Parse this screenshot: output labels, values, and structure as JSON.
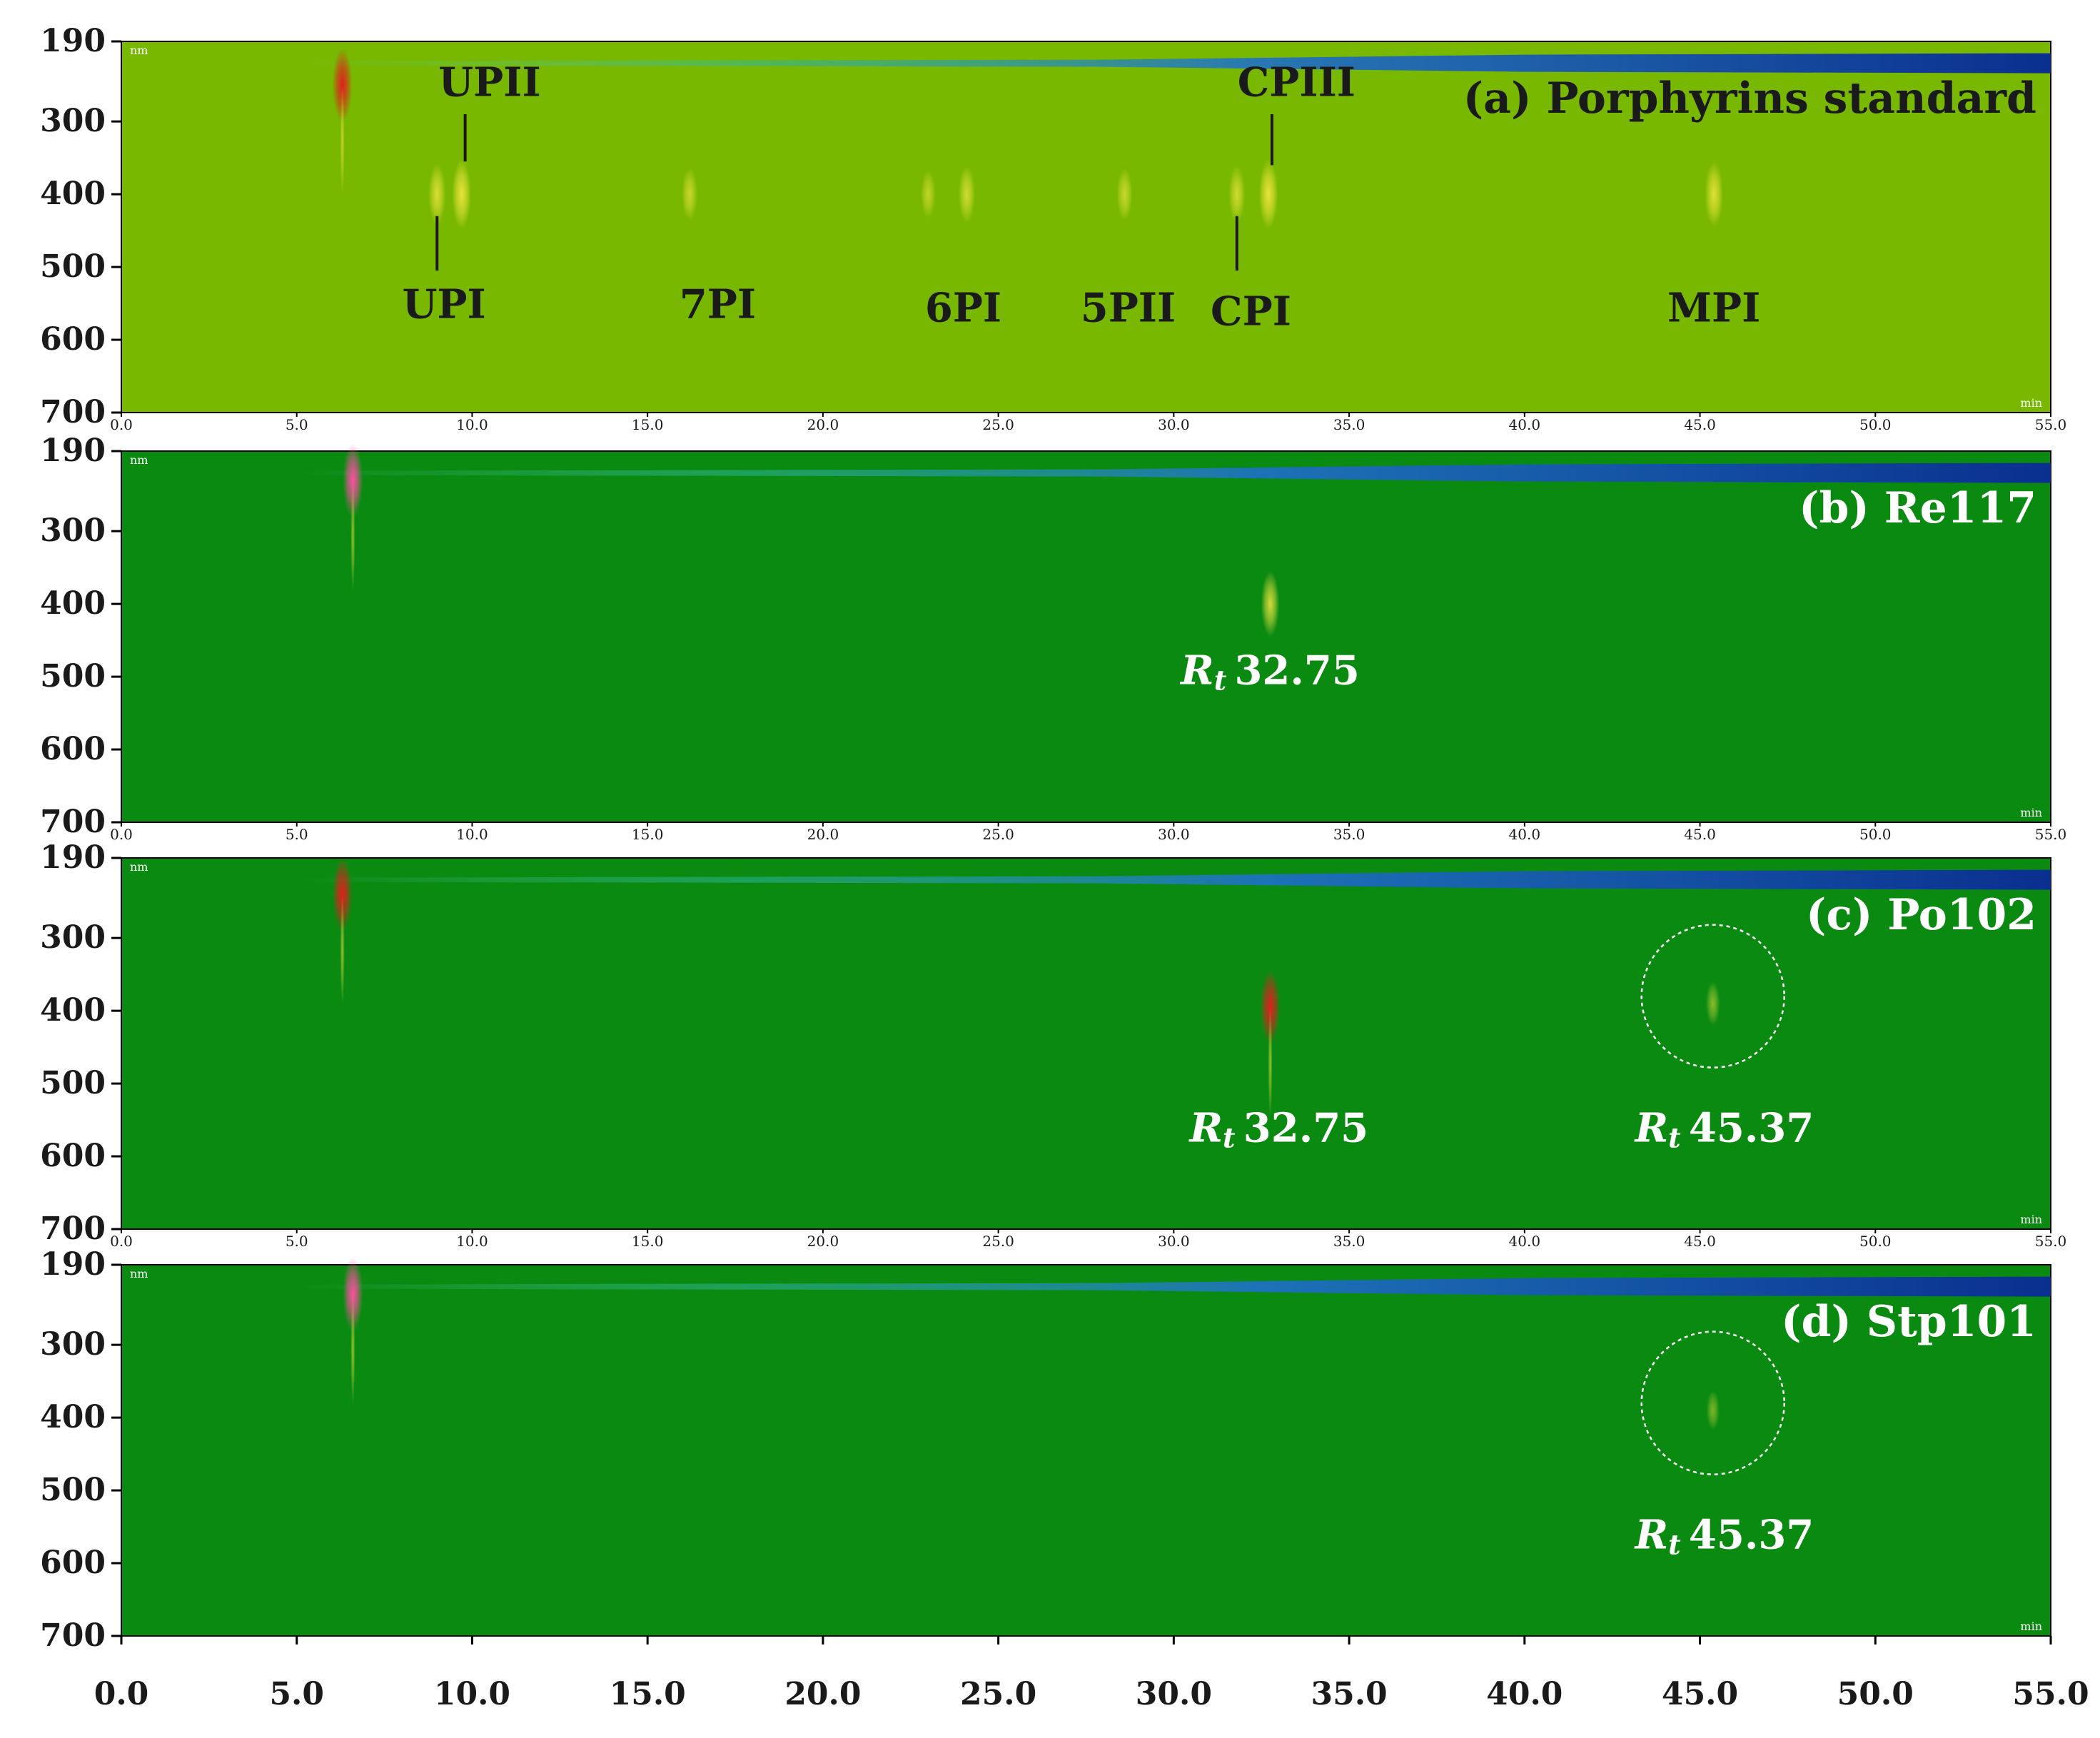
{
  "colors": {
    "panel_a_background": "#78b800",
    "panel_background": "#0b8a12",
    "solvent_band": "#0a2f8f",
    "peak_yellow": "#f2e640",
    "peak_red": "#e01e1e",
    "peak_magenta": "#ff4fa3",
    "dark_label": "#1a1a1a",
    "light_label": "#ffffff",
    "axis_strip": "#ffffff"
  },
  "chart_data": [
    {
      "type": "heatmap",
      "title": "(a) Porphyrins standard",
      "xlim": [
        0,
        55
      ],
      "x_ticks": [
        "0.0",
        "5.0",
        "10.0",
        "15.0",
        "20.0",
        "25.0",
        "30.0",
        "35.0",
        "40.0",
        "45.0",
        "50.0",
        "55.0"
      ],
      "y_ticks": [
        "190",
        "300",
        "400",
        "500",
        "600",
        "700"
      ],
      "ylim": [
        190,
        700
      ],
      "y_unit": "nm",
      "x_unit": "min",
      "peaks": [
        {
          "x": 6.3,
          "y": 250,
          "strength": 1.0,
          "color": "red"
        },
        {
          "x": 9.0,
          "y": 400,
          "strength": 0.7,
          "color": "yellow"
        },
        {
          "x": 9.7,
          "y": 400,
          "strength": 0.9,
          "color": "yellow"
        },
        {
          "x": 16.2,
          "y": 400,
          "strength": 0.5,
          "color": "yellow"
        },
        {
          "x": 23.0,
          "y": 400,
          "strength": 0.4,
          "color": "yellow"
        },
        {
          "x": 24.1,
          "y": 400,
          "strength": 0.6,
          "color": "yellow"
        },
        {
          "x": 28.6,
          "y": 400,
          "strength": 0.5,
          "color": "yellow"
        },
        {
          "x": 31.8,
          "y": 400,
          "strength": 0.6,
          "color": "yellow"
        },
        {
          "x": 32.7,
          "y": 400,
          "strength": 0.9,
          "color": "yellow"
        },
        {
          "x": 45.4,
          "y": 400,
          "strength": 0.8,
          "color": "yellow"
        }
      ],
      "annotations": [
        {
          "text": "UPII",
          "x": 10.5,
          "y": 265,
          "pointer_x": 9.8,
          "pointer_from": 290,
          "pointer_to": 355
        },
        {
          "text": "UPI",
          "x": 9.2,
          "y": 570,
          "pointer_x": 9.0,
          "pointer_from": 430,
          "pointer_to": 505
        },
        {
          "text": "7PI",
          "x": 17.0,
          "y": 570
        },
        {
          "text": "6PI",
          "x": 24.0,
          "y": 575
        },
        {
          "text": "5PII",
          "x": 28.7,
          "y": 575
        },
        {
          "text": "CPI",
          "x": 32.2,
          "y": 580,
          "pointer_x": 31.8,
          "pointer_from": 430,
          "pointer_to": 505
        },
        {
          "text": "CPIII",
          "x": 33.5,
          "y": 265,
          "pointer_x": 32.8,
          "pointer_from": 290,
          "pointer_to": 360
        },
        {
          "text": "MPI",
          "x": 45.4,
          "y": 575
        }
      ]
    },
    {
      "type": "heatmap",
      "title": "(b) Re117",
      "xlim": [
        0,
        55
      ],
      "x_ticks": [
        "0.0",
        "5.0",
        "10.0",
        "15.0",
        "20.0",
        "25.0",
        "30.0",
        "35.0",
        "40.0",
        "45.0",
        "50.0",
        "55.0"
      ],
      "y_ticks": [
        "190",
        "300",
        "400",
        "500",
        "600",
        "700"
      ],
      "ylim": [
        190,
        700
      ],
      "y_unit": "nm",
      "x_unit": "min",
      "peaks": [
        {
          "x": 6.6,
          "y": 230,
          "strength": 1.0,
          "color": "magenta"
        },
        {
          "x": 32.75,
          "y": 400,
          "strength": 0.8,
          "color": "yellow"
        }
      ],
      "annotations": [
        {
          "text": "32.75",
          "italic_prefix": "R",
          "subscript": "t",
          "x": 32.75,
          "y": 510
        }
      ]
    },
    {
      "type": "heatmap",
      "title": "(c) Po102",
      "xlim": [
        0,
        55
      ],
      "x_ticks": [
        "0.0",
        "5.0",
        "10.0",
        "15.0",
        "20.0",
        "25.0",
        "30.0",
        "35.0",
        "40.0",
        "45.0",
        "50.0",
        "55.0"
      ],
      "y_ticks": [
        "190",
        "300",
        "400",
        "500",
        "600",
        "700"
      ],
      "ylim": [
        190,
        700
      ],
      "y_unit": "nm",
      "x_unit": "min",
      "peaks": [
        {
          "x": 6.3,
          "y": 240,
          "strength": 1.0,
          "color": "red"
        },
        {
          "x": 32.75,
          "y": 395,
          "strength": 1.0,
          "color": "red"
        },
        {
          "x": 45.37,
          "y": 390,
          "strength": 0.3,
          "color": "yellow"
        }
      ],
      "circles": [
        {
          "x": 45.37,
          "y": 380
        }
      ],
      "annotations": [
        {
          "text": "32.75",
          "italic_prefix": "R",
          "subscript": "t",
          "x": 33.0,
          "y": 580
        },
        {
          "text": "45.37",
          "italic_prefix": "R",
          "subscript": "t",
          "x": 45.7,
          "y": 580
        }
      ]
    },
    {
      "type": "heatmap",
      "title": "(d) Stp101",
      "xlim": [
        0,
        55
      ],
      "x_ticks": [
        "0.0",
        "5.0",
        "10.0",
        "15.0",
        "20.0",
        "25.0",
        "30.0",
        "35.0",
        "40.0",
        "45.0",
        "50.0",
        "55.0"
      ],
      "y_ticks": [
        "190",
        "300",
        "400",
        "500",
        "600",
        "700"
      ],
      "ylim": [
        190,
        700
      ],
      "y_unit": "nm",
      "x_unit": "min",
      "peaks": [
        {
          "x": 6.6,
          "y": 230,
          "strength": 1.0,
          "color": "magenta"
        },
        {
          "x": 45.37,
          "y": 390,
          "strength": 0.2,
          "color": "yellow"
        }
      ],
      "circles": [
        {
          "x": 45.37,
          "y": 380
        }
      ],
      "annotations": [
        {
          "text": "45.37",
          "italic_prefix": "R",
          "subscript": "t",
          "x": 45.7,
          "y": 580
        }
      ]
    }
  ]
}
